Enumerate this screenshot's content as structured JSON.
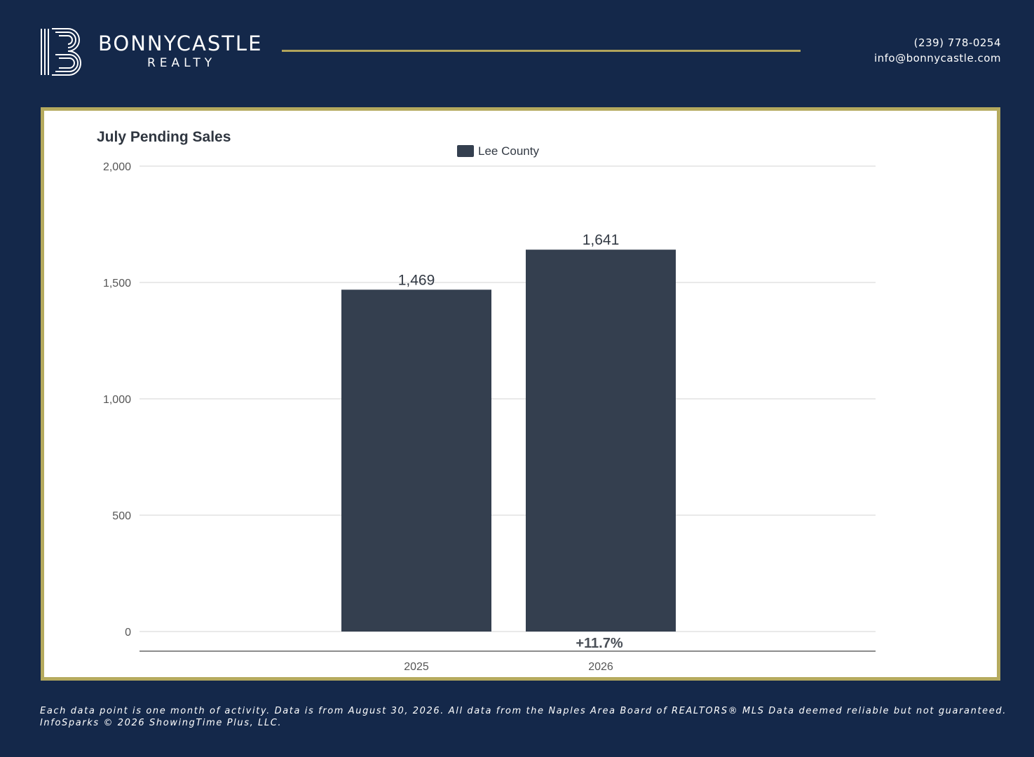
{
  "header": {
    "brand_name": "BONNYCASTLE",
    "brand_sub": "REALTY",
    "phone": "(239) 778-0254",
    "email": "info@bonnycastle.com",
    "logo_icon": "letter-b-lines-icon"
  },
  "colors": {
    "background": "#14284a",
    "accent_gold": "#b1a45b",
    "bar": "#343f4f"
  },
  "chart_data": {
    "type": "bar",
    "title": "July Pending Sales",
    "categories": [
      "2025",
      "2026"
    ],
    "series": [
      {
        "name": "Lee County",
        "values": [
          1469,
          1641
        ]
      }
    ],
    "data_labels": [
      "1,469",
      "1,641"
    ],
    "ylim": [
      0,
      2000
    ],
    "yticks": [
      0,
      500,
      1000,
      1500,
      2000
    ],
    "ytick_labels": [
      "0",
      "500",
      "1,000",
      "1,500",
      "2,000"
    ],
    "change_label": "+11.7%",
    "xlabel": "",
    "ylabel": "",
    "grid": true,
    "legend_position": "top-center"
  },
  "footer": {
    "line1": "Each data point is one month of activity. Data is from August 30, 2026. All data from the Naples Area Board of REALTORS® MLS  Data deemed reliable but not guaranteed.",
    "line2": "InfoSparks © 2026 ShowingTime Plus, LLC."
  }
}
